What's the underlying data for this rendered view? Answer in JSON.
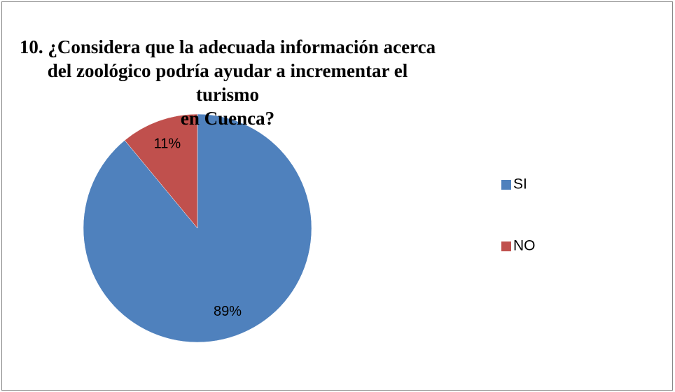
{
  "chart_data": {
    "type": "pie",
    "title": "10.    ¿Considera que la adecuada información acerca\ndel zoológico podría ayudar a incrementar el turismo\nen Cuenca?",
    "categories": [
      "SI",
      "NO"
    ],
    "values": [
      89,
      11
    ],
    "value_labels": [
      "89%",
      "11%"
    ],
    "colors": [
      "#4f81bd",
      "#c0504d"
    ],
    "legend": "right"
  }
}
